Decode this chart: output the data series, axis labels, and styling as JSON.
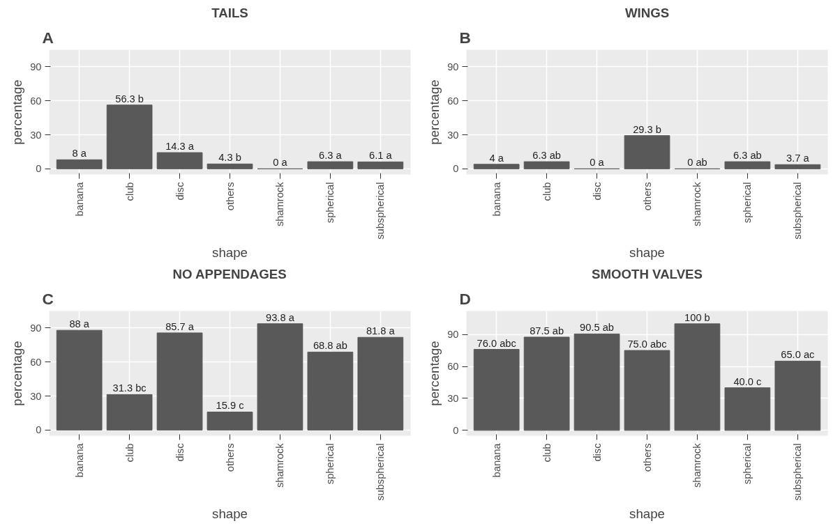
{
  "chart_data": [
    {
      "type": "bar",
      "title": "TAILS",
      "annotations": [
        "A"
      ],
      "xlabel": "shape",
      "ylabel": "percentage",
      "categories": [
        "banana",
        "club",
        "disc",
        "others",
        "shamrock",
        "spherical",
        "subspherical"
      ],
      "values": [
        8,
        56.3,
        14.3,
        4.3,
        0,
        6.3,
        6.1
      ],
      "value_labels": [
        "8 a",
        "56.3 b",
        "14.3 a",
        "4.3 b",
        "0 a",
        "6.3 a",
        "6.1 a"
      ],
      "color": "#595959",
      "ylim": [
        -5,
        105
      ],
      "yticks": [
        0,
        30,
        60,
        90
      ],
      "grid": true
    },
    {
      "type": "bar",
      "title": "WINGS",
      "annotations": [
        "B"
      ],
      "xlabel": "shape",
      "ylabel": "percentage",
      "categories": [
        "banana",
        "club",
        "disc",
        "others",
        "shamrock",
        "spherical",
        "subspherical"
      ],
      "values": [
        4,
        6.3,
        0,
        29.3,
        0,
        6.3,
        3.7
      ],
      "value_labels": [
        "4 a",
        "6.3 ab",
        "0 a",
        "29.3 b",
        "0 ab",
        "6.3 ab",
        "3.7 a"
      ],
      "color": "#595959",
      "ylim": [
        -5,
        105
      ],
      "yticks": [
        0,
        30,
        60,
        90
      ],
      "grid": true
    },
    {
      "type": "bar",
      "title": "NO APPENDAGES",
      "annotations": [
        "C"
      ],
      "xlabel": "shape",
      "ylabel": "percentage",
      "categories": [
        "banana",
        "club",
        "disc",
        "others",
        "shamrock",
        "spherical",
        "subspherical"
      ],
      "values": [
        88,
        31.3,
        85.7,
        15.9,
        93.8,
        68.8,
        81.8
      ],
      "value_labels": [
        "88 a",
        "31.3 bc",
        "85.7 a",
        "15.9 c",
        "93.8 a",
        "68.8 ab",
        "81.8 a"
      ],
      "color": "#595959",
      "ylim": [
        -5,
        105
      ],
      "yticks": [
        0,
        30,
        60,
        90
      ],
      "grid": true
    },
    {
      "type": "bar",
      "title": "SMOOTH VALVES",
      "annotations": [
        "D"
      ],
      "xlabel": "shape",
      "ylabel": "percentage",
      "categories": [
        "banana",
        "club",
        "disc",
        "others",
        "shamrock",
        "spherical",
        "subspherical"
      ],
      "values": [
        76.0,
        87.5,
        90.5,
        75.0,
        100,
        40.0,
        65.0
      ],
      "value_labels": [
        "76.0 abc",
        "87.5 ab",
        "90.5 ab",
        "75.0 abc",
        "100 b",
        "40.0 c",
        "65.0 ac"
      ],
      "color": "#595959",
      "ylim": [
        -5,
        112
      ],
      "yticks": [
        0,
        30,
        60,
        90
      ],
      "grid": true
    }
  ]
}
